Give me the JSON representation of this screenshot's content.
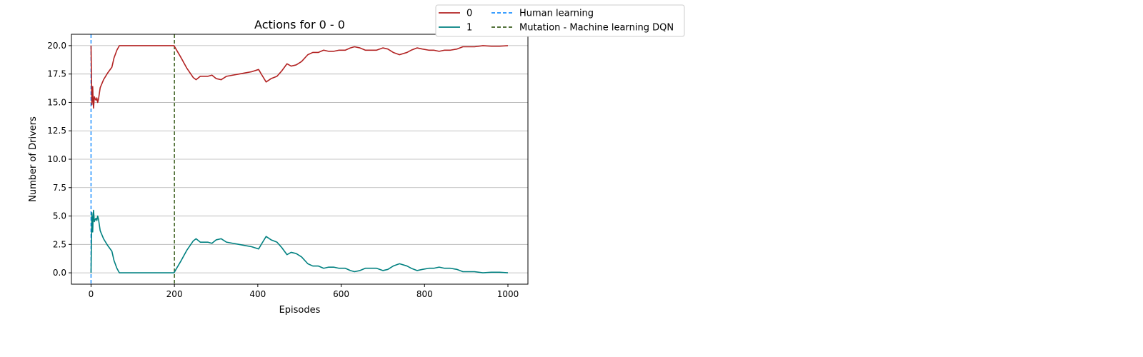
{
  "chart_data": {
    "type": "line",
    "title": "Actions for 0 - 0",
    "xlabel": "Episodes",
    "ylabel": "Number of Drivers",
    "xlim": [
      -47,
      1048
    ],
    "ylim": [
      -1.0,
      21.0
    ],
    "xticks": [
      0,
      200,
      400,
      600,
      800,
      1000
    ],
    "yticks": [
      0.0,
      2.5,
      5.0,
      7.5,
      10.0,
      12.5,
      15.0,
      17.5,
      20.0
    ],
    "xtick_labels": [
      "0",
      "200",
      "400",
      "600",
      "800",
      "1000"
    ],
    "ytick_labels": [
      "0.0",
      "2.5",
      "5.0",
      "7.5",
      "10.0",
      "12.5",
      "15.0",
      "17.5",
      "20.0"
    ],
    "grid": "horizontal",
    "legend_placement": "top-center, outside plot, two columns",
    "series": [
      {
        "name": "0",
        "color": "#b22222",
        "style": "solid",
        "points": [
          [
            0,
            20
          ],
          [
            2,
            14.8
          ],
          [
            4,
            16.4
          ],
          [
            5,
            15.2
          ],
          [
            6,
            14.5
          ],
          [
            8,
            15.5
          ],
          [
            10,
            15.3
          ],
          [
            12,
            15.2
          ],
          [
            14,
            15.4
          ],
          [
            16,
            15.0
          ],
          [
            18,
            15.3
          ],
          [
            22,
            16.3
          ],
          [
            30,
            17.0
          ],
          [
            40,
            17.6
          ],
          [
            50,
            18.1
          ],
          [
            55,
            18.9
          ],
          [
            62,
            19.6
          ],
          [
            68,
            20
          ],
          [
            100,
            20
          ],
          [
            150,
            20
          ],
          [
            199,
            20
          ],
          [
            215,
            19.0
          ],
          [
            230,
            18.0
          ],
          [
            245,
            17.2
          ],
          [
            252,
            17.0
          ],
          [
            262,
            17.3
          ],
          [
            280,
            17.3
          ],
          [
            290,
            17.4
          ],
          [
            300,
            17.1
          ],
          [
            312,
            17.0
          ],
          [
            325,
            17.3
          ],
          [
            340,
            17.4
          ],
          [
            355,
            17.5
          ],
          [
            370,
            17.6
          ],
          [
            385,
            17.7
          ],
          [
            402,
            17.9
          ],
          [
            410,
            17.4
          ],
          [
            420,
            16.8
          ],
          [
            432,
            17.1
          ],
          [
            446,
            17.3
          ],
          [
            458,
            17.8
          ],
          [
            470,
            18.4
          ],
          [
            480,
            18.2
          ],
          [
            492,
            18.3
          ],
          [
            505,
            18.6
          ],
          [
            520,
            19.2
          ],
          [
            532,
            19.4
          ],
          [
            545,
            19.4
          ],
          [
            558,
            19.6
          ],
          [
            570,
            19.5
          ],
          [
            582,
            19.5
          ],
          [
            595,
            19.6
          ],
          [
            610,
            19.6
          ],
          [
            622,
            19.8
          ],
          [
            632,
            19.9
          ],
          [
            645,
            19.8
          ],
          [
            658,
            19.6
          ],
          [
            672,
            19.6
          ],
          [
            685,
            19.6
          ],
          [
            700,
            19.8
          ],
          [
            712,
            19.7
          ],
          [
            725,
            19.4
          ],
          [
            740,
            19.2
          ],
          [
            758,
            19.4
          ],
          [
            768,
            19.6
          ],
          [
            782,
            19.8
          ],
          [
            795,
            19.7
          ],
          [
            810,
            19.6
          ],
          [
            822,
            19.6
          ],
          [
            835,
            19.5
          ],
          [
            848,
            19.6
          ],
          [
            862,
            19.6
          ],
          [
            878,
            19.7
          ],
          [
            892,
            19.9
          ],
          [
            920,
            19.9
          ],
          [
            940,
            20.0
          ],
          [
            960,
            19.95
          ],
          [
            980,
            19.95
          ],
          [
            1000,
            20.0
          ]
        ]
      },
      {
        "name": "1",
        "color": "#008080",
        "style": "solid",
        "points": [
          [
            0,
            0
          ],
          [
            2,
            5.3
          ],
          [
            4,
            3.6
          ],
          [
            5,
            4.8
          ],
          [
            6,
            5.5
          ],
          [
            8,
            4.5
          ],
          [
            10,
            4.7
          ],
          [
            12,
            4.8
          ],
          [
            14,
            4.6
          ],
          [
            16,
            5.0
          ],
          [
            18,
            4.7
          ],
          [
            22,
            3.7
          ],
          [
            30,
            3.0
          ],
          [
            40,
            2.4
          ],
          [
            50,
            1.9
          ],
          [
            55,
            1.1
          ],
          [
            62,
            0.4
          ],
          [
            68,
            0
          ],
          [
            100,
            0
          ],
          [
            150,
            0
          ],
          [
            199,
            0
          ],
          [
            215,
            1.0
          ],
          [
            230,
            2.0
          ],
          [
            245,
            2.8
          ],
          [
            252,
            3.0
          ],
          [
            262,
            2.7
          ],
          [
            280,
            2.7
          ],
          [
            290,
            2.6
          ],
          [
            300,
            2.9
          ],
          [
            312,
            3.0
          ],
          [
            325,
            2.7
          ],
          [
            340,
            2.6
          ],
          [
            355,
            2.5
          ],
          [
            370,
            2.4
          ],
          [
            385,
            2.3
          ],
          [
            402,
            2.1
          ],
          [
            410,
            2.6
          ],
          [
            420,
            3.2
          ],
          [
            432,
            2.9
          ],
          [
            446,
            2.7
          ],
          [
            458,
            2.2
          ],
          [
            470,
            1.6
          ],
          [
            480,
            1.8
          ],
          [
            492,
            1.7
          ],
          [
            505,
            1.4
          ],
          [
            520,
            0.8
          ],
          [
            532,
            0.6
          ],
          [
            545,
            0.6
          ],
          [
            558,
            0.4
          ],
          [
            570,
            0.5
          ],
          [
            582,
            0.5
          ],
          [
            595,
            0.4
          ],
          [
            610,
            0.4
          ],
          [
            622,
            0.2
          ],
          [
            632,
            0.1
          ],
          [
            645,
            0.2
          ],
          [
            658,
            0.4
          ],
          [
            672,
            0.4
          ],
          [
            685,
            0.4
          ],
          [
            700,
            0.2
          ],
          [
            712,
            0.3
          ],
          [
            725,
            0.6
          ],
          [
            740,
            0.8
          ],
          [
            758,
            0.6
          ],
          [
            768,
            0.4
          ],
          [
            782,
            0.2
          ],
          [
            795,
            0.3
          ],
          [
            810,
            0.4
          ],
          [
            822,
            0.4
          ],
          [
            835,
            0.5
          ],
          [
            848,
            0.4
          ],
          [
            862,
            0.4
          ],
          [
            878,
            0.3
          ],
          [
            892,
            0.1
          ],
          [
            920,
            0.1
          ],
          [
            940,
            0.0
          ],
          [
            960,
            0.05
          ],
          [
            980,
            0.05
          ],
          [
            1000,
            0.0
          ]
        ]
      }
    ],
    "vlines": [
      {
        "name": "Human learning",
        "x": 0,
        "color": "#1e90ff",
        "style": "dashed"
      },
      {
        "name": "Mutation - Machine learning DQN",
        "x": 200,
        "color": "#3b5f1e",
        "style": "dashed"
      }
    ]
  }
}
